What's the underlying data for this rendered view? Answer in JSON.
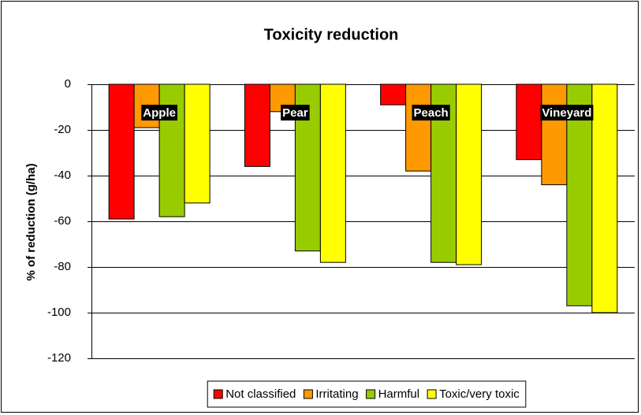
{
  "chart_data": {
    "type": "bar",
    "title": "Toxicity reduction",
    "ylabel": "% of reduction (g/ha)",
    "categories": [
      "Apple",
      "Pear",
      "Peach",
      "Vineyard"
    ],
    "series": [
      {
        "name": "Not classified",
        "color": "#ff0000",
        "values": [
          -59,
          -36,
          -9,
          -33
        ]
      },
      {
        "name": "Irritating",
        "color": "#ff9900",
        "values": [
          -19,
          -12,
          -38,
          -44
        ]
      },
      {
        "name": "Harmful",
        "color": "#99cc00",
        "values": [
          -58,
          -73,
          -78,
          -97
        ]
      },
      {
        "name": "Toxic/very toxic",
        "color": "#ffff00",
        "values": [
          -52,
          -78,
          -79,
          -100
        ]
      }
    ],
    "ylim": [
      -120,
      0
    ],
    "yticks": [
      0,
      -20,
      -40,
      -60,
      -80,
      -100,
      -120
    ],
    "grid": true,
    "legend": "bottom"
  }
}
